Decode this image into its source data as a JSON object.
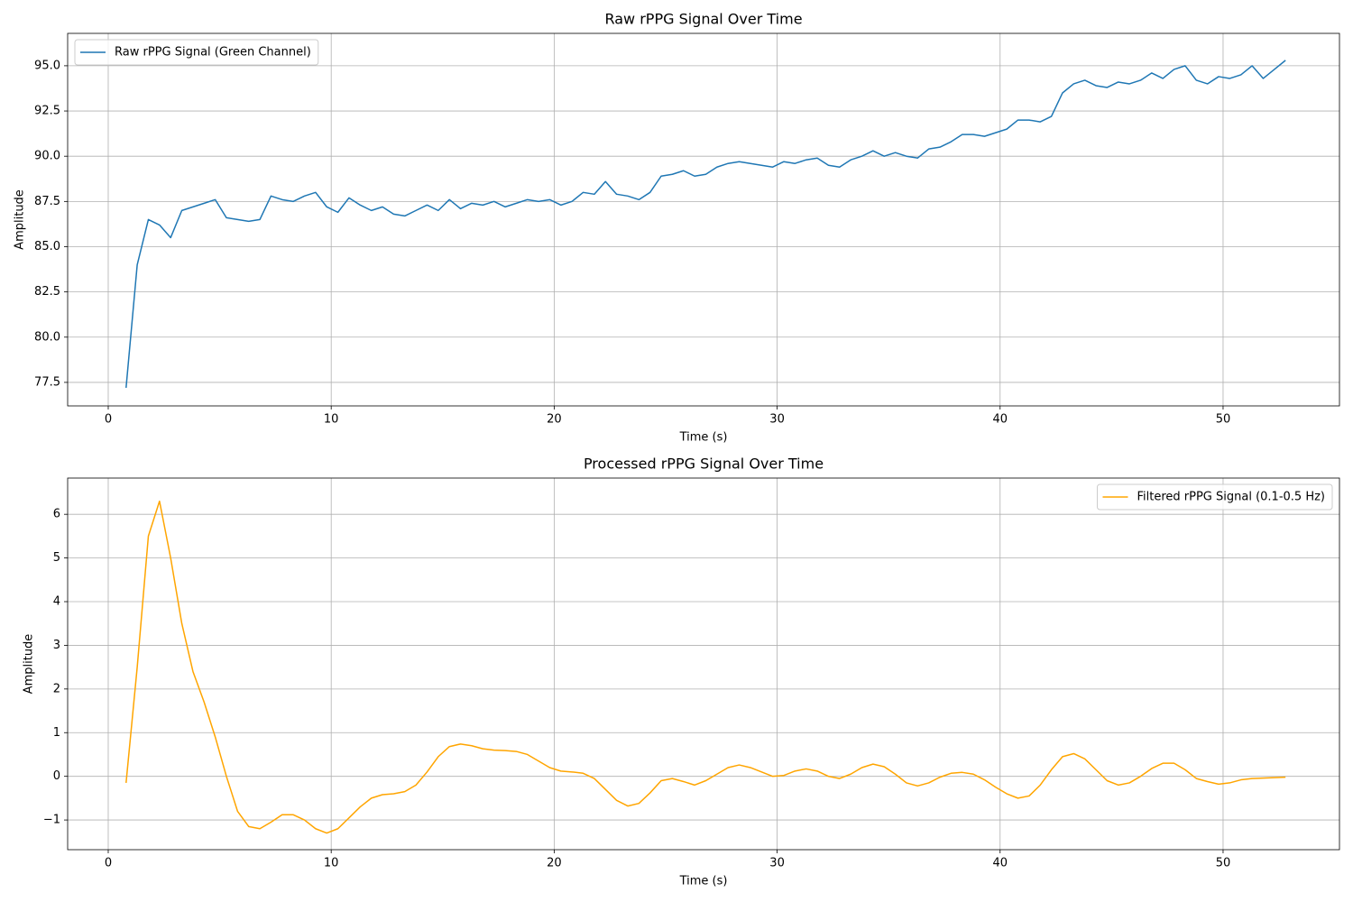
{
  "chart_data": [
    {
      "type": "line",
      "title": "Raw rPPG Signal Over Time",
      "xlabel": "Time (s)",
      "ylabel": "Amplitude",
      "x": [
        0.8,
        1.3,
        1.8,
        2.3,
        2.8,
        3.3,
        3.8,
        4.3,
        4.8,
        5.3,
        5.8,
        6.3,
        6.8,
        7.3,
        7.8,
        8.3,
        8.8,
        9.3,
        9.8,
        10.3,
        10.8,
        11.3,
        11.8,
        12.3,
        12.8,
        13.3,
        13.8,
        14.3,
        14.8,
        15.3,
        15.8,
        16.3,
        16.8,
        17.3,
        17.8,
        18.3,
        18.8,
        19.3,
        19.8,
        20.3,
        20.8,
        21.3,
        21.8,
        22.3,
        22.8,
        23.3,
        23.8,
        24.3,
        24.8,
        25.3,
        25.8,
        26.3,
        26.8,
        27.3,
        27.8,
        28.3,
        28.8,
        29.3,
        29.8,
        30.3,
        30.8,
        31.3,
        31.8,
        32.3,
        32.8,
        33.3,
        33.8,
        34.3,
        34.8,
        35.3,
        35.8,
        36.3,
        36.8,
        37.3,
        37.8,
        38.3,
        38.8,
        39.3,
        39.8,
        40.3,
        40.8,
        41.3,
        41.8,
        42.3,
        42.8,
        43.3,
        43.8,
        44.3,
        44.8,
        45.3,
        45.8,
        46.3,
        46.8,
        47.3,
        47.8,
        48.3,
        48.8,
        49.3,
        49.8,
        50.3,
        50.8,
        51.3,
        51.8,
        52.3,
        52.8
      ],
      "series": [
        {
          "name": "Raw rPPG Signal (Green Channel)",
          "color": "#1f77b4",
          "values": [
            77.2,
            84.0,
            86.5,
            86.2,
            85.5,
            87.0,
            87.2,
            87.4,
            87.6,
            86.6,
            86.5,
            86.4,
            86.5,
            87.8,
            87.6,
            87.5,
            87.8,
            88.0,
            87.2,
            86.9,
            87.7,
            87.3,
            87.0,
            87.2,
            86.8,
            86.7,
            87.0,
            87.3,
            87.0,
            87.6,
            87.1,
            87.4,
            87.3,
            87.5,
            87.2,
            87.4,
            87.6,
            87.5,
            87.6,
            87.3,
            87.5,
            88.0,
            87.9,
            88.6,
            87.9,
            87.8,
            87.6,
            88.0,
            88.9,
            89.0,
            89.2,
            88.9,
            89.0,
            89.4,
            89.6,
            89.7,
            89.6,
            89.5,
            89.4,
            89.7,
            89.6,
            89.8,
            89.9,
            89.5,
            89.4,
            89.8,
            90.0,
            90.3,
            90.0,
            90.2,
            90.0,
            89.9,
            90.4,
            90.5,
            90.8,
            91.2,
            91.2,
            91.1,
            91.3,
            91.5,
            92.0,
            92.0,
            91.9,
            92.2,
            93.5,
            94.0,
            94.2,
            93.9,
            93.8,
            94.1,
            94.0,
            94.2,
            94.6,
            94.3,
            94.8,
            95.0,
            94.2,
            94.0,
            94.4,
            94.3,
            94.5,
            95.0,
            94.3,
            94.8,
            95.3
          ]
        }
      ],
      "xlim": [
        -1.82,
        55.22
      ],
      "ylim": [
        76.2,
        96.79
      ],
      "xticks": [
        0,
        10,
        20,
        30,
        40,
        50
      ],
      "yticks": [
        77.5,
        {
          "value": 80,
          "label": "80.0"
        },
        82.5,
        {
          "value": 85,
          "label": "85.0"
        },
        87.5,
        {
          "value": 90,
          "label": "90.0"
        },
        92.5,
        {
          "value": 95,
          "label": "95.0"
        }
      ],
      "grid": true,
      "legend": "upper-left"
    },
    {
      "type": "line",
      "title": "Processed rPPG Signal Over Time",
      "xlabel": "Time (s)",
      "ylabel": "Amplitude",
      "x": [
        0.8,
        1.3,
        1.8,
        2.3,
        2.8,
        3.3,
        3.8,
        4.3,
        4.8,
        5.3,
        5.8,
        6.3,
        6.8,
        7.3,
        7.8,
        8.3,
        8.8,
        9.3,
        9.8,
        10.3,
        10.8,
        11.3,
        11.8,
        12.3,
        12.8,
        13.3,
        13.8,
        14.3,
        14.8,
        15.3,
        15.8,
        16.3,
        16.8,
        17.3,
        17.8,
        18.3,
        18.8,
        19.3,
        19.8,
        20.3,
        20.8,
        21.3,
        21.8,
        22.3,
        22.8,
        23.3,
        23.8,
        24.3,
        24.8,
        25.3,
        25.8,
        26.3,
        26.8,
        27.3,
        27.8,
        28.3,
        28.8,
        29.3,
        29.8,
        30.3,
        30.8,
        31.3,
        31.8,
        32.3,
        32.8,
        33.3,
        33.8,
        34.3,
        34.8,
        35.3,
        35.8,
        36.3,
        36.8,
        37.3,
        37.8,
        38.3,
        38.8,
        39.3,
        39.8,
        40.3,
        40.8,
        41.3,
        41.8,
        42.3,
        42.8,
        43.3,
        43.8,
        44.3,
        44.8,
        45.3,
        45.8,
        46.3,
        46.8,
        47.3,
        47.8,
        48.3,
        48.8,
        49.3,
        49.8,
        50.3,
        50.8,
        51.3,
        51.8,
        52.3,
        52.8
      ],
      "series": [
        {
          "name": "Filtered rPPG Signal (0.1-0.5 Hz)",
          "color": "#ffa500",
          "values": [
            -0.15,
            2.5,
            5.5,
            6.3,
            5.0,
            3.5,
            2.4,
            1.7,
            0.9,
            0.0,
            -0.8,
            -1.15,
            -1.2,
            -1.05,
            -0.88,
            -0.88,
            -1.0,
            -1.2,
            -1.3,
            -1.2,
            -0.95,
            -0.7,
            -0.5,
            -0.42,
            -0.4,
            -0.35,
            -0.2,
            0.1,
            0.45,
            0.68,
            0.74,
            0.7,
            0.63,
            0.6,
            0.59,
            0.57,
            0.5,
            0.35,
            0.2,
            0.12,
            0.1,
            0.07,
            -0.05,
            -0.3,
            -0.55,
            -0.68,
            -0.62,
            -0.38,
            -0.1,
            -0.05,
            -0.12,
            -0.2,
            -0.1,
            0.05,
            0.2,
            0.26,
            0.2,
            0.1,
            0.0,
            0.02,
            0.12,
            0.17,
            0.12,
            0.0,
            -0.05,
            0.05,
            0.2,
            0.28,
            0.22,
            0.05,
            -0.15,
            -0.22,
            -0.15,
            -0.02,
            0.07,
            0.09,
            0.05,
            -0.08,
            -0.25,
            -0.4,
            -0.5,
            -0.45,
            -0.2,
            0.15,
            0.45,
            0.52,
            0.4,
            0.15,
            -0.1,
            -0.2,
            -0.15,
            0.0,
            0.18,
            0.3,
            0.3,
            0.15,
            -0.05,
            -0.12,
            -0.18,
            -0.15,
            -0.08,
            -0.05,
            -0.04,
            -0.03,
            -0.02
          ]
        }
      ],
      "xlim": [
        -1.82,
        55.22
      ],
      "ylim": [
        -1.68,
        6.83
      ],
      "xticks": [
        0,
        10,
        20,
        30,
        40,
        50
      ],
      "yticks": [
        {
          "value": -1,
          "label": "−1"
        },
        0,
        1,
        2,
        3,
        4,
        5,
        6
      ],
      "grid": true,
      "legend": "upper-right"
    }
  ]
}
